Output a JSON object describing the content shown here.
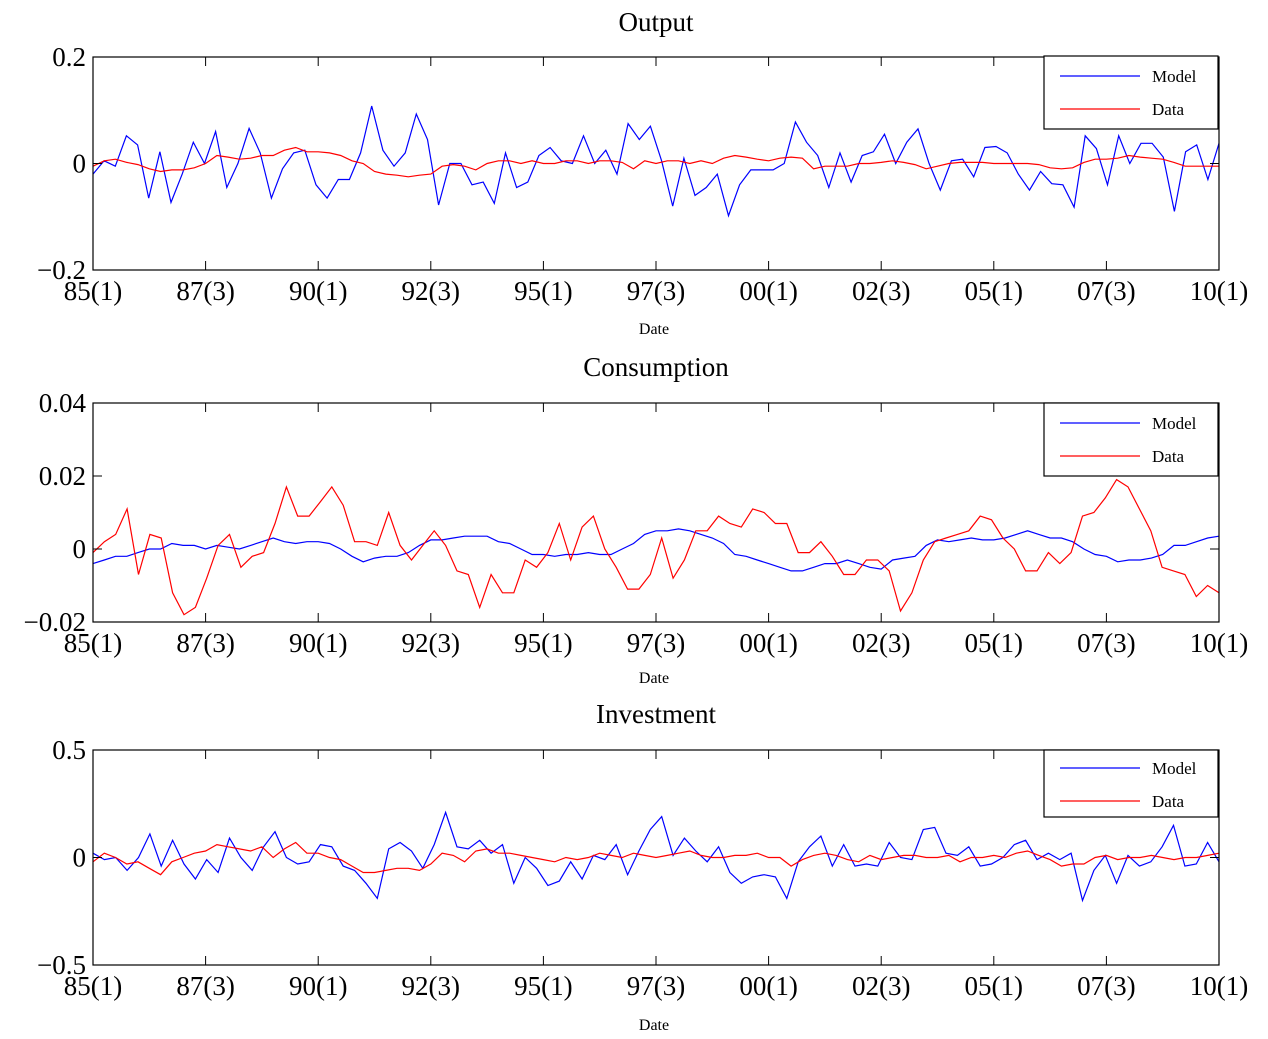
{
  "chart_data": [
    {
      "type": "line",
      "title": "Output",
      "xlabel": "Date",
      "ylabel": "",
      "ylim": [
        -0.2,
        0.2
      ],
      "yticks": [
        -0.2,
        0,
        0.2
      ],
      "ytick_labels": [
        "−0.2",
        "0",
        "0.2"
      ],
      "xticks": [
        0,
        10,
        20,
        30,
        40,
        50,
        60,
        70,
        80,
        90,
        100
      ],
      "xtick_labels": [
        "85(1)",
        "87(3)",
        "90(1)",
        "92(3)",
        "95(1)",
        "97(3)",
        "00(1)",
        "02(3)",
        "05(1)",
        "07(3)",
        "10(1)"
      ],
      "xlim": [
        0,
        100
      ],
      "legend_position": "top-right",
      "grid": false,
      "series": [
        {
          "name": "Model",
          "color": "#0000ff",
          "values": [
            -0.02,
            0.005,
            -0.005,
            0.052,
            0.035,
            -0.065,
            0.022,
            -0.073,
            -0.02,
            0.04,
            0.0,
            0.06,
            -0.045,
            0.0,
            0.066,
            0.02,
            -0.065,
            -0.01,
            0.02,
            0.025,
            -0.04,
            -0.065,
            -0.03,
            -0.03,
            0.02,
            0.108,
            0.025,
            -0.005,
            0.02,
            0.093,
            0.045,
            -0.078,
            0.0,
            0.0,
            -0.04,
            -0.035,
            -0.075,
            0.02,
            -0.045,
            -0.035,
            0.015,
            0.03,
            0.005,
            0.0,
            0.052,
            0.0,
            0.025,
            -0.02,
            0.075,
            0.045,
            0.07,
            0.005,
            -0.08,
            0.01,
            -0.06,
            -0.045,
            -0.02,
            -0.098,
            -0.04,
            -0.012,
            -0.012,
            -0.012,
            0.0,
            0.078,
            0.04,
            0.015,
            -0.045,
            0.02,
            -0.035,
            0.015,
            0.022,
            0.055,
            0.0,
            0.04,
            0.065,
            0.0,
            -0.05,
            0.005,
            0.008,
            -0.025,
            0.03,
            0.032,
            0.02,
            -0.02,
            -0.05,
            -0.015,
            -0.038,
            -0.04,
            -0.082,
            0.052,
            0.028,
            -0.04,
            0.052,
            0.0,
            0.038,
            0.038,
            0.012,
            -0.09,
            0.022,
            0.035,
            -0.03,
            0.038
          ]
        },
        {
          "name": "Data",
          "color": "#ff0000",
          "values": [
            -0.005,
            0.005,
            0.008,
            0.002,
            -0.002,
            -0.01,
            -0.015,
            -0.012,
            -0.012,
            -0.008,
            0.0,
            0.015,
            0.012,
            0.008,
            0.01,
            0.015,
            0.015,
            0.025,
            0.03,
            0.022,
            0.022,
            0.02,
            0.015,
            0.005,
            0.0,
            -0.015,
            -0.02,
            -0.022,
            -0.025,
            -0.022,
            -0.02,
            -0.005,
            -0.002,
            -0.005,
            -0.012,
            0.0,
            0.005,
            0.005,
            0.0,
            0.005,
            0.0,
            0.0,
            0.005,
            0.005,
            0.0,
            0.005,
            0.005,
            0.002,
            -0.01,
            0.005,
            0.0,
            0.005,
            0.005,
            0.0,
            0.005,
            0.0,
            0.01,
            0.015,
            0.012,
            0.008,
            0.005,
            0.01,
            0.012,
            0.01,
            -0.01,
            -0.005,
            -0.005,
            -0.005,
            0.0,
            0.0,
            0.002,
            0.005,
            0.002,
            -0.002,
            -0.01,
            -0.005,
            0.0,
            0.002,
            0.002,
            0.002,
            0.0,
            0.0,
            0.0,
            0.0,
            -0.002,
            -0.008,
            -0.01,
            -0.008,
            0.002,
            0.008,
            0.008,
            0.01,
            0.015,
            0.012,
            0.01,
            0.008,
            0.002,
            -0.005,
            -0.005,
            -0.005,
            -0.005
          ]
        }
      ]
    },
    {
      "type": "line",
      "title": "Consumption",
      "xlabel": "Date",
      "ylabel": "",
      "ylim": [
        -0.02,
        0.04
      ],
      "yticks": [
        -0.02,
        0,
        0.02,
        0.04
      ],
      "ytick_labels": [
        "−0.02",
        "0",
        "0.02",
        "0.04"
      ],
      "xticks": [
        0,
        10,
        20,
        30,
        40,
        50,
        60,
        70,
        80,
        90,
        100
      ],
      "xtick_labels": [
        "85(1)",
        "87(3)",
        "90(1)",
        "92(3)",
        "95(1)",
        "97(3)",
        "00(1)",
        "02(3)",
        "05(1)",
        "07(3)",
        "10(1)"
      ],
      "xlim": [
        0,
        100
      ],
      "legend_position": "top-right",
      "grid": false,
      "series": [
        {
          "name": "Model",
          "color": "#0000ff",
          "values": [
            -0.004,
            -0.003,
            -0.002,
            -0.002,
            -0.001,
            0.0,
            0.0,
            0.0015,
            0.001,
            0.001,
            0.0,
            0.001,
            0.0005,
            0.0,
            0.001,
            0.002,
            0.003,
            0.002,
            0.0015,
            0.002,
            0.002,
            0.0015,
            0.0,
            -0.002,
            -0.0035,
            -0.0025,
            -0.002,
            -0.002,
            -0.001,
            0.001,
            0.0025,
            0.0025,
            0.003,
            0.0035,
            0.0035,
            0.0035,
            0.002,
            0.0015,
            0.0,
            -0.0015,
            -0.0015,
            -0.002,
            -0.0015,
            -0.0015,
            -0.001,
            -0.0015,
            -0.0015,
            0.0,
            0.0015,
            0.004,
            0.005,
            0.005,
            0.0055,
            0.005,
            0.004,
            0.003,
            0.0015,
            -0.0015,
            -0.002,
            -0.003,
            -0.004,
            -0.005,
            -0.006,
            -0.006,
            -0.005,
            -0.004,
            -0.004,
            -0.003,
            -0.004,
            -0.005,
            -0.0055,
            -0.003,
            -0.0025,
            -0.002,
            0.001,
            0.0025,
            0.002,
            0.0025,
            0.003,
            0.0025,
            0.0025,
            0.003,
            0.004,
            0.005,
            0.004,
            0.003,
            0.003,
            0.002,
            0.0,
            -0.0015,
            -0.002,
            -0.0035,
            -0.003,
            -0.003,
            -0.0025,
            -0.0015,
            0.001,
            0.001,
            0.002,
            0.003,
            0.0035
          ]
        },
        {
          "name": "Data",
          "color": "#ff0000",
          "values": [
            -0.001,
            0.002,
            0.004,
            0.011,
            -0.007,
            0.004,
            0.003,
            -0.012,
            -0.018,
            -0.016,
            -0.008,
            0.001,
            0.004,
            -0.005,
            -0.002,
            -0.001,
            0.007,
            0.017,
            0.009,
            0.009,
            0.013,
            0.017,
            0.012,
            0.002,
            0.002,
            0.001,
            0.01,
            0.001,
            -0.003,
            0.001,
            0.005,
            0.001,
            -0.006,
            -0.007,
            -0.016,
            -0.007,
            -0.012,
            -0.012,
            -0.003,
            -0.005,
            -0.001,
            0.007,
            -0.003,
            0.006,
            0.009,
            0.0,
            -0.005,
            -0.011,
            -0.011,
            -0.007,
            0.003,
            -0.008,
            -0.003,
            0.005,
            0.005,
            0.009,
            0.007,
            0.006,
            0.011,
            0.01,
            0.007,
            0.007,
            -0.001,
            -0.001,
            0.002,
            -0.002,
            -0.007,
            -0.007,
            -0.003,
            -0.003,
            -0.006,
            -0.017,
            -0.012,
            -0.003,
            0.002,
            0.003,
            0.004,
            0.005,
            0.009,
            0.008,
            0.003,
            0.0,
            -0.006,
            -0.006,
            -0.001,
            -0.004,
            -0.001,
            0.009,
            0.01,
            0.014,
            0.019,
            0.017,
            0.011,
            0.005,
            -0.005,
            -0.006,
            -0.007,
            -0.013,
            -0.01,
            -0.012
          ]
        }
      ]
    },
    {
      "type": "line",
      "title": "Investment",
      "xlabel": "Date",
      "ylabel": "",
      "ylim": [
        -0.5,
        0.5
      ],
      "yticks": [
        -0.5,
        0,
        0.5
      ],
      "ytick_labels": [
        "−0.5",
        "0",
        "0.5"
      ],
      "xticks": [
        0,
        10,
        20,
        30,
        40,
        50,
        60,
        70,
        80,
        90,
        100
      ],
      "xtick_labels": [
        "85(1)",
        "87(3)",
        "90(1)",
        "92(3)",
        "95(1)",
        "97(3)",
        "00(1)",
        "02(3)",
        "05(1)",
        "07(3)",
        "10(1)"
      ],
      "xlim": [
        0,
        100
      ],
      "legend_position": "top-right",
      "grid": false,
      "series": [
        {
          "name": "Model",
          "color": "#0000ff",
          "values": [
            0.02,
            -0.01,
            0.0,
            -0.06,
            0.0,
            0.11,
            -0.04,
            0.08,
            -0.03,
            -0.1,
            -0.01,
            -0.07,
            0.09,
            0.0,
            -0.06,
            0.05,
            0.12,
            0.0,
            -0.03,
            -0.02,
            0.06,
            0.05,
            -0.04,
            -0.06,
            -0.12,
            -0.19,
            0.04,
            0.07,
            0.03,
            -0.05,
            0.06,
            0.21,
            0.05,
            0.04,
            0.08,
            0.02,
            0.06,
            -0.12,
            0.0,
            -0.05,
            -0.13,
            -0.11,
            -0.02,
            -0.1,
            0.01,
            -0.01,
            0.06,
            -0.08,
            0.03,
            0.13,
            0.19,
            0.01,
            0.09,
            0.03,
            -0.02,
            0.05,
            -0.07,
            -0.12,
            -0.09,
            -0.08,
            -0.09,
            -0.19,
            -0.02,
            0.05,
            0.1,
            -0.04,
            0.06,
            -0.04,
            -0.03,
            -0.04,
            0.07,
            0.0,
            -0.01,
            0.13,
            0.14,
            0.02,
            0.01,
            0.05,
            -0.04,
            -0.03,
            0.0,
            0.06,
            0.08,
            -0.01,
            0.02,
            -0.01,
            0.02,
            -0.2,
            -0.06,
            0.01,
            -0.12,
            0.01,
            -0.04,
            -0.02,
            0.05,
            0.15,
            -0.04,
            -0.03,
            0.07,
            -0.02
          ]
        },
        {
          "name": "Data",
          "color": "#ff0000",
          "values": [
            -0.02,
            0.02,
            0.0,
            -0.03,
            -0.02,
            -0.05,
            -0.08,
            -0.02,
            0.0,
            0.02,
            0.03,
            0.06,
            0.05,
            0.04,
            0.03,
            0.05,
            0.0,
            0.04,
            0.07,
            0.02,
            0.02,
            0.0,
            -0.01,
            -0.04,
            -0.07,
            -0.07,
            -0.06,
            -0.05,
            -0.05,
            -0.06,
            -0.03,
            0.02,
            0.01,
            -0.02,
            0.03,
            0.04,
            0.02,
            0.02,
            0.01,
            0.0,
            -0.01,
            -0.02,
            0.0,
            -0.01,
            0.0,
            0.02,
            0.01,
            0.0,
            0.02,
            0.01,
            0.0,
            0.01,
            0.02,
            0.03,
            0.01,
            0.0,
            0.0,
            0.01,
            0.01,
            0.02,
            0.0,
            0.0,
            -0.04,
            -0.01,
            0.01,
            0.02,
            0.01,
            -0.01,
            -0.02,
            0.01,
            -0.01,
            0.0,
            0.01,
            0.01,
            0.0,
            0.0,
            0.01,
            -0.02,
            0.0,
            0.0,
            0.01,
            0.0,
            0.02,
            0.03,
            0.01,
            -0.01,
            -0.04,
            -0.03,
            -0.03,
            0.0,
            0.01,
            -0.01,
            0.0,
            0.0,
            0.01,
            0.0,
            -0.01,
            0.0,
            0.0,
            0.01,
            0.02
          ]
        }
      ]
    }
  ]
}
